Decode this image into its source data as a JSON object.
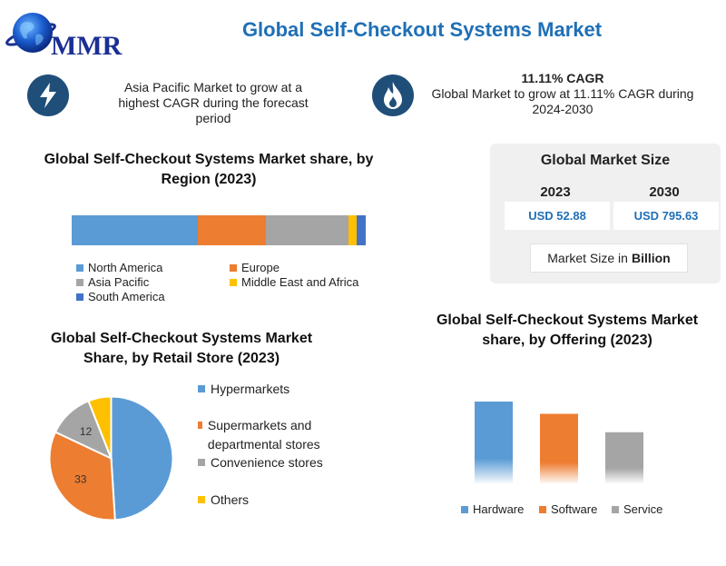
{
  "header": {
    "logo_text": "MMR",
    "title": "Global Self-Checkout Systems Market"
  },
  "facts": {
    "fact1_icon": "lightning-icon",
    "fact1_text": "Asia Pacific Market to grow at a highest CAGR during the forecast period",
    "fact2_icon": "flame-icon",
    "fact2_title": "11.11% CAGR",
    "fact2_text": "Global Market to grow at 11.11% CAGR during 2024-2030"
  },
  "market_size": {
    "title": "Global Market Size",
    "year_a": "2023",
    "year_b": "2030",
    "value_a": "USD 52.88",
    "value_b": "USD 795.63",
    "note_prefix": "Market Size in",
    "note_bold": "Billion"
  },
  "chart_data": [
    {
      "type": "bar",
      "orientation": "horizontal-stacked",
      "title": "Global Self-Checkout Systems Market share, by Region (2023)",
      "series": [
        {
          "name": "North America",
          "value": 43,
          "color": "#5b9bd5"
        },
        {
          "name": "Europe",
          "value": 23,
          "color": "#ed7d31"
        },
        {
          "name": "Asia Pacific",
          "value": 28,
          "color": "#a5a5a5"
        },
        {
          "name": "Middle East and Africa",
          "value": 3,
          "color": "#ffc000"
        },
        {
          "name": "South America",
          "value": 3,
          "color": "#4472c4"
        }
      ],
      "legend_position": "bottom"
    },
    {
      "type": "pie",
      "title": "Global Self-Checkout Systems Market Share, by Retail Store (2023)",
      "slices": [
        {
          "name": "Hypermarkets",
          "value": 49,
          "color": "#5b9bd5",
          "label": ""
        },
        {
          "name": "Supermarkets and departmental stores",
          "value": 33,
          "color": "#ed7d31",
          "label": "33"
        },
        {
          "name": "Convenience stores",
          "value": 12,
          "color": "#a5a5a5",
          "label": "12"
        },
        {
          "name": "Others",
          "value": 6,
          "color": "#ffc000",
          "label": ""
        }
      ],
      "legend_position": "right"
    },
    {
      "type": "bar",
      "title": "Global Self-Checkout Systems Market share, by Offering (2023)",
      "categories": [
        "Hardware",
        "Software",
        "Service"
      ],
      "values": [
        80,
        68,
        50
      ],
      "colors": [
        "#5b9bd5",
        "#ed7d31",
        "#a5a5a5"
      ],
      "ylim": [
        0,
        80
      ],
      "legend_position": "bottom"
    }
  ]
}
